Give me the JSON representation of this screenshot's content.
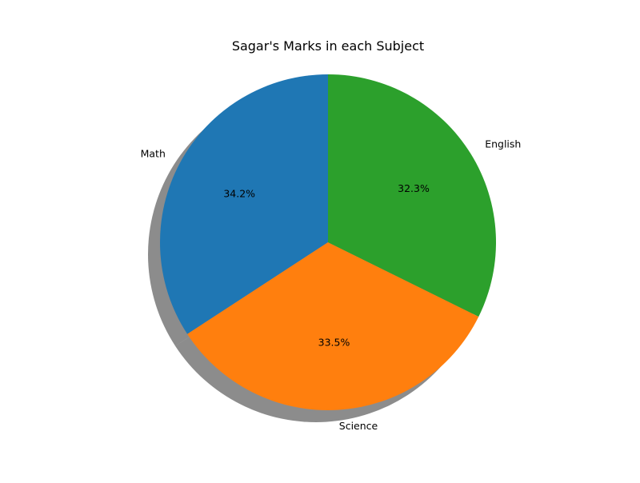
{
  "chart_data": {
    "type": "pie",
    "title": "Sagar's Marks in each Subject",
    "categories": [
      "Math",
      "Science",
      "English"
    ],
    "values": [
      34.2,
      33.5,
      32.3
    ],
    "percent_labels": [
      "34.2%",
      "33.5%",
      "32.3%"
    ],
    "colors": [
      "#1f77b4",
      "#ff7f0e",
      "#2ca02c"
    ],
    "start_angle_deg": 90,
    "direction": "counterclockwise",
    "shadow": true,
    "legend": false
  }
}
